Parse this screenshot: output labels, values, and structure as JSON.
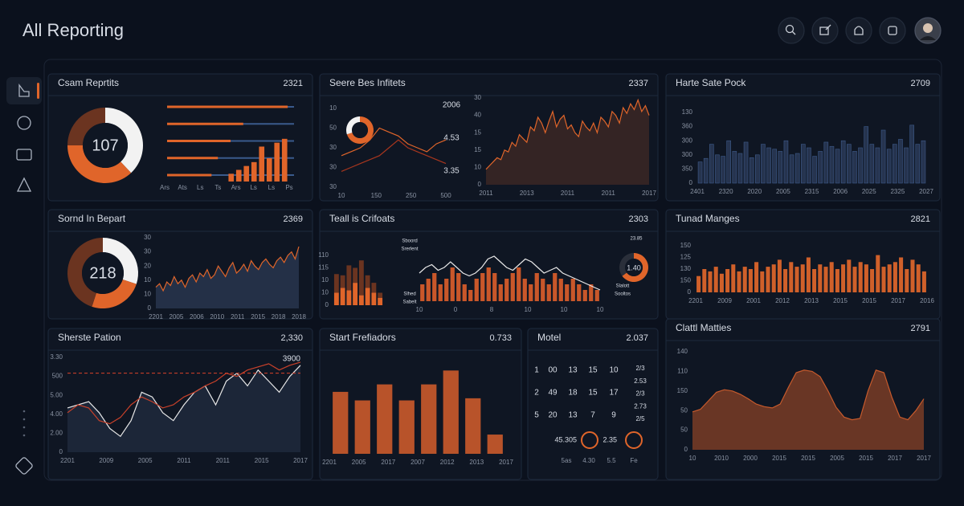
{
  "header": {
    "title": "All Reporting"
  },
  "panels": [
    {
      "title": "Csam Reprtits",
      "value": "2321",
      "charts": [
        {
          "type": "donut",
          "center": "107",
          "values": [
            38,
            37,
            25
          ],
          "colors": [
            "#f2f2f2",
            "#e0652a",
            "#6b3420"
          ]
        },
        {
          "type": "hbars",
          "values": [
            95,
            60,
            50,
            40,
            35
          ],
          "xlim": [
            0,
            100
          ],
          "color": "#e0652a",
          "track": "#3a5a8c"
        },
        {
          "type": "bars",
          "values": [
            2,
            3,
            4,
            5,
            9,
            6,
            10,
            11
          ],
          "ylim": [
            0,
            12
          ],
          "color": "#e0652a"
        },
        {
          "type": "labels",
          "texts": [
            "Ars",
            "Ats",
            "Ls",
            "Ts",
            "Ars",
            "Ls",
            "Ls",
            "Ps"
          ]
        }
      ]
    },
    {
      "title": "Seere Bes Infitets",
      "value": "2337",
      "charts": [
        {
          "type": "donut",
          "values": [
            70,
            30
          ],
          "colors": [
            "#e0652a",
            "#f2f2f2"
          ]
        },
        {
          "type": "line",
          "ylim": [
            0,
            10
          ],
          "series": [
            {
              "color": "#e0652a",
              "values": [
                4,
                4.5,
                5,
                6,
                7.5,
                7,
                6.5,
                5.5,
                5,
                4.5,
                5.5,
                6
              ]
            },
            {
              "color": "#a8361e",
              "values": [
                2,
                2.5,
                3,
                3.5,
                4,
                5,
                6,
                5,
                4.5,
                4,
                3.5,
                3
              ]
            }
          ],
          "ylabels": [
            "10",
            "50",
            "30",
            "30",
            "30"
          ],
          "xlabels": [
            "10",
            "150",
            "250",
            "500"
          ]
        },
        {
          "type": "vlabels",
          "texts": [
            "2006",
            "4.53",
            "3.35"
          ]
        },
        {
          "type": "line",
          "ylim": [
            0,
            45
          ],
          "color": "#e0652a",
          "fill": "rgba(224,101,42,0.18)",
          "values": [
            8,
            10,
            12,
            14,
            13,
            18,
            17,
            22,
            20,
            26,
            24,
            22,
            30,
            28,
            35,
            32,
            27,
            33,
            38,
            30,
            34,
            36,
            29,
            31,
            27,
            25,
            33,
            30,
            28,
            32,
            27,
            35,
            33,
            30,
            38,
            36,
            32,
            40,
            37,
            42,
            39,
            44,
            38,
            41,
            36
          ],
          "ylabels": [
            "30",
            "40",
            "15",
            "15",
            "10",
            "0"
          ],
          "xlabels": [
            "2011",
            "2013",
            "2011",
            "2011",
            "2017"
          ]
        }
      ]
    },
    {
      "title": "Harte Sate Pock",
      "value": "2709",
      "charts": [
        {
          "type": "bars",
          "ylim": [
            0,
            100
          ],
          "color": "#26344f",
          "stroke": "#3d5a8a",
          "values": [
            30,
            35,
            55,
            40,
            38,
            60,
            45,
            42,
            58,
            36,
            40,
            55,
            50,
            48,
            45,
            60,
            40,
            42,
            55,
            50,
            38,
            45,
            58,
            52,
            48,
            60,
            55,
            45,
            50,
            80,
            55,
            50,
            75,
            48,
            55,
            62,
            50,
            82,
            55,
            60
          ],
          "ylabels": [
            "130",
            "360",
            "300",
            "300",
            "350",
            "0"
          ],
          "xlabels": [
            "2401",
            "2320",
            "2020",
            "2005",
            "2315",
            "2006",
            "2025",
            "2325",
            "2027"
          ]
        }
      ]
    },
    {
      "title": "Sornd In Bepart",
      "value": "2369",
      "charts": [
        {
          "type": "donut",
          "center": "218",
          "values": [
            30,
            25,
            45
          ],
          "colors": [
            "#f2f2f2",
            "#e0652a",
            "#6b3420"
          ]
        },
        {
          "type": "line",
          "ylim": [
            0,
            40
          ],
          "color": "#e0652a",
          "fill": "#243047",
          "values": [
            12,
            14,
            10,
            15,
            13,
            18,
            14,
            16,
            12,
            17,
            19,
            15,
            20,
            18,
            22,
            17,
            19,
            24,
            21,
            18,
            23,
            26,
            20,
            22,
            25,
            21,
            27,
            24,
            22,
            26,
            28,
            25,
            23,
            27,
            29,
            26,
            30,
            32,
            28,
            35
          ],
          "ylabels": [
            "30",
            "30",
            "20",
            "10",
            "10",
            "0"
          ],
          "xlabels": [
            "2201",
            "2005",
            "2006",
            "2010",
            "2011",
            "2015",
            "2018",
            "2018"
          ]
        }
      ]
    },
    {
      "title": "Teall is Crifoats",
      "value": "2303",
      "charts": [
        {
          "type": "stacked",
          "ylim": [
            0,
            40
          ],
          "series": [
            {
              "color": "#e0652a",
              "values": [
                10,
                14,
                12,
                18,
                8,
                14,
                10,
                6
              ]
            },
            {
              "color": "#6b3420",
              "values": [
                15,
                10,
                20,
                12,
                28,
                10,
                8,
                4
              ]
            }
          ],
          "ylabels": [
            "110",
            "115",
            "10",
            "10",
            "0"
          ]
        },
        {
          "type": "bars",
          "ylim": [
            0,
            10
          ],
          "color": "#c9572a",
          "values": [
            3,
            4,
            5,
            3,
            4,
            6,
            5,
            3,
            2,
            4,
            5,
            6,
            5,
            3,
            4,
            5,
            6,
            4,
            3,
            5,
            4,
            3,
            5,
            4,
            3,
            4,
            3,
            2,
            3,
            2
          ],
          "xlabels": [
            "10",
            "0",
            "8",
            "10",
            "10",
            "10"
          ]
        },
        {
          "type": "line",
          "ylim": [
            0,
            10
          ],
          "color": "#e8e8e8",
          "values": [
            5,
            6,
            6.5,
            5.5,
            6,
            7,
            6,
            5,
            4.5,
            5,
            6,
            7.5,
            8,
            7,
            6,
            5.5,
            6.5,
            7.5,
            7,
            6,
            5,
            5.5,
            6,
            5,
            4.5,
            4,
            3.5,
            3,
            2.5,
            2
          ]
        },
        {
          "type": "donut",
          "center": "1.40",
          "values": [
            65,
            35
          ],
          "colors": [
            "#e0652a",
            "#2a2f3a"
          ]
        },
        {
          "type": "vlabels",
          "texts": [
            "23.85"
          ]
        },
        {
          "type": "vlabels",
          "texts": [
            "Slalott",
            "Sooltos"
          ]
        },
        {
          "type": "vlabels",
          "texts": [
            "Sboord",
            "Srerlent"
          ]
        },
        {
          "type": "vlabels",
          "texts": [
            "Slhed",
            "Sabelt"
          ]
        }
      ]
    },
    {
      "title": "Tunad Manges",
      "value": "2821",
      "charts": [
        {
          "type": "bars",
          "ylim": [
            0,
            100
          ],
          "color": "#d0602a",
          "values": [
            35,
            50,
            45,
            55,
            40,
            50,
            60,
            45,
            55,
            50,
            65,
            45,
            55,
            60,
            70,
            50,
            65,
            55,
            60,
            75,
            50,
            60,
            55,
            65,
            50,
            60,
            70,
            55,
            65,
            60,
            50,
            80,
            55,
            60,
            65,
            75,
            50,
            70,
            60,
            45
          ],
          "ylabels": [
            "150",
            "125",
            "130",
            "150",
            "0"
          ],
          "xlabels": [
            "2201",
            "2009",
            "2001",
            "2012",
            "2013",
            "2015",
            "2015",
            "2017",
            "2016"
          ]
        }
      ]
    },
    {
      "title": "Sherste Pation",
      "value": "2,330",
      "charts": [
        {
          "type": "line",
          "ylim": [
            0,
            600
          ],
          "fill": "#1c2638",
          "ref_value": 500,
          "ref_color": "#d9412a",
          "annotation": "3900",
          "series": [
            {
              "color": "#e8e8e8",
              "values": [
                280,
                300,
                320,
                250,
                150,
                100,
                200,
                380,
                350,
                250,
                200,
                300,
                380,
                420,
                300,
                450,
                500,
                420,
                520,
                450,
                380,
                480,
                550
              ]
            },
            {
              "color": "#c9412a",
              "values": [
                250,
                300,
                280,
                200,
                180,
                220,
                300,
                350,
                320,
                280,
                300,
                350,
                380,
                420,
                450,
                500,
                480,
                520,
                540,
                560,
                520,
                550,
                570
              ]
            }
          ],
          "ylabels": [
            "3.30",
            "500",
            "5.00",
            "4.00",
            "2.00",
            "0"
          ],
          "xlabels": [
            "2201",
            "2009",
            "2005",
            "2011",
            "2011",
            "2015",
            "2017"
          ]
        }
      ]
    },
    {
      "title": "Start Frefiadors",
      "value": "0.733",
      "charts": [
        {
          "type": "bars",
          "ylim": [
            0,
            85
          ],
          "color": "#b8532a",
          "values": [
            58,
            50,
            65,
            50,
            65,
            78,
            52,
            18
          ],
          "xlabels": [
            "2201",
            "2005",
            "2017",
            "2007",
            "2012",
            "2013",
            "2017"
          ]
        }
      ]
    },
    {
      "title": "Motel",
      "value": "2.037",
      "grid": [
        [
          "1",
          "00",
          "13",
          "15",
          "10"
        ],
        [
          "2",
          "49",
          "18",
          "15",
          "17"
        ],
        [
          "5",
          "20",
          "13",
          "7",
          "9"
        ]
      ],
      "side": [
        "2/3",
        "2.53",
        "2/3",
        "2.73",
        "2/5"
      ],
      "rings": [
        "45.305",
        "2.35"
      ],
      "foot": [
        "5as",
        "4.30",
        "5.5",
        "Fe"
      ],
      "charts": []
    },
    {
      "title": "Clattl Matties",
      "value": "2791",
      "charts": [
        {
          "type": "line",
          "ylim": [
            0,
            150
          ],
          "color": "#c65a2c",
          "fill": "rgba(180,82,40,0.55)",
          "values": [
            58,
            62,
            75,
            88,
            92,
            90,
            85,
            78,
            70,
            66,
            64,
            70,
            95,
            118,
            122,
            120,
            112,
            90,
            65,
            50,
            46,
            48,
            90,
            122,
            118,
            80,
            50,
            46,
            60,
            78
          ],
          "ylabels": [
            "140",
            "110",
            "150",
            "50",
            "50",
            "0"
          ],
          "xlabels": [
            "10",
            "2010",
            "2000",
            "2015",
            "2015",
            "2005",
            "2015",
            "2017",
            "2017"
          ]
        }
      ]
    }
  ]
}
